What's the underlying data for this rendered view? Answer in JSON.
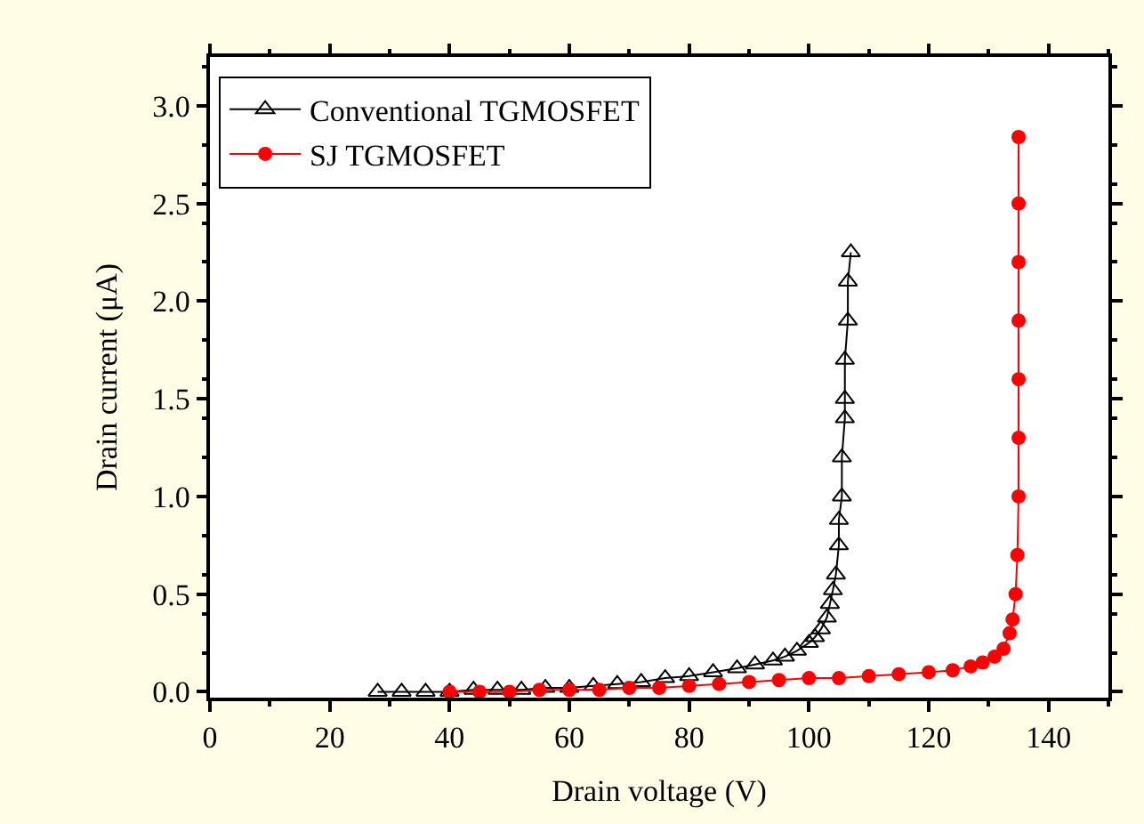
{
  "chart_data": {
    "type": "line",
    "xlabel": "Drain voltage (V)",
    "ylabel": "Drain current (μA)",
    "xlim": [
      0,
      150
    ],
    "xticks": [
      0,
      20,
      40,
      60,
      80,
      100,
      120,
      140
    ],
    "ylim": [
      -0.03,
      3.25
    ],
    "yticks": [
      {
        "value": 0,
        "label": "0.0"
      },
      0.5,
      {
        "value": 1,
        "label": "1.0"
      },
      1.5,
      {
        "value": 2,
        "label": "2.0"
      },
      2.5,
      {
        "value": 3,
        "label": "3.0"
      }
    ],
    "legend": "top left",
    "series": [
      {
        "name": "Conventional TGMOSFET",
        "color": "#000000",
        "marker": "triangle",
        "x": [
          28,
          32,
          36,
          40,
          44,
          48,
          52,
          56,
          60,
          64,
          68,
          72,
          76,
          80,
          84,
          88,
          91,
          94,
          96,
          98,
          100,
          101,
          102,
          103,
          103.5,
          104,
          104.5,
          105,
          105,
          105.5,
          105.5,
          106,
          106,
          106,
          106.5,
          106.5,
          107
        ],
        "values": [
          0,
          0,
          0,
          0,
          0.01,
          0.01,
          0.01,
          0.02,
          0.02,
          0.03,
          0.04,
          0.05,
          0.07,
          0.08,
          0.1,
          0.12,
          0.14,
          0.16,
          0.18,
          0.21,
          0.25,
          0.28,
          0.32,
          0.38,
          0.45,
          0.52,
          0.6,
          0.75,
          0.88,
          1.0,
          1.2,
          1.4,
          1.5,
          1.7,
          1.9,
          2.1,
          2.25
        ]
      },
      {
        "name": "SJ TGMOSFET",
        "color": "#ff0000",
        "marker": "circle",
        "x": [
          40,
          45,
          50,
          55,
          60,
          65,
          70,
          75,
          80,
          85,
          90,
          95,
          100,
          105,
          110,
          115,
          120,
          124,
          127,
          129,
          131,
          132.5,
          133.5,
          134,
          134.5,
          134.8,
          135,
          135,
          135,
          135,
          135,
          135,
          135
        ],
        "values": [
          0,
          0,
          0,
          0.01,
          0.01,
          0.01,
          0.02,
          0.02,
          0.03,
          0.04,
          0.05,
          0.06,
          0.07,
          0.07,
          0.08,
          0.09,
          0.1,
          0.11,
          0.13,
          0.15,
          0.18,
          0.22,
          0.3,
          0.37,
          0.5,
          0.7,
          1.0,
          1.3,
          1.6,
          1.9,
          2.2,
          2.5,
          2.84
        ]
      }
    ]
  }
}
